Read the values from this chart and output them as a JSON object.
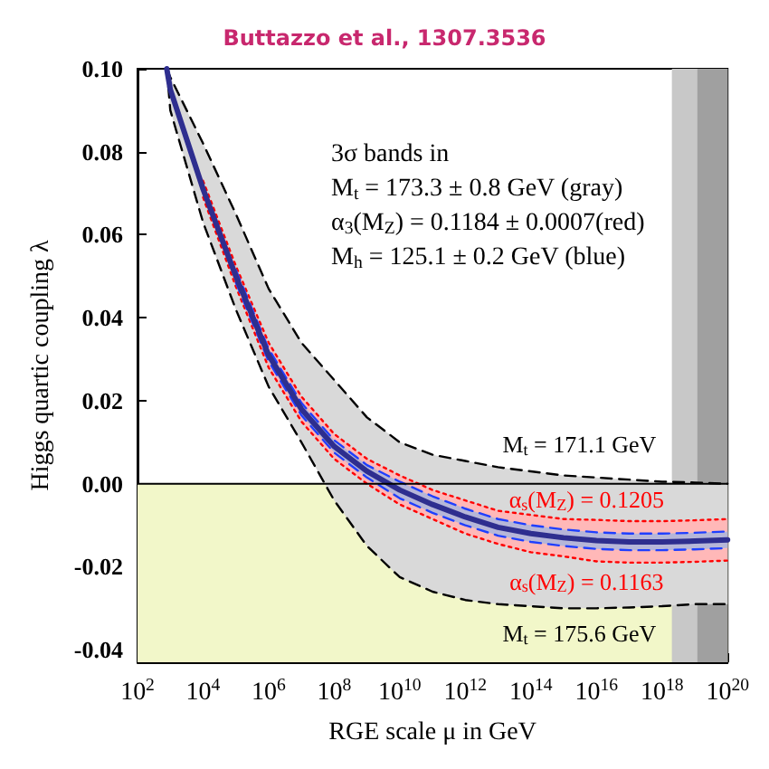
{
  "chart_data": {
    "type": "line",
    "title": "Buttazzo et al., 1307.3536",
    "xlabel": "RGE scale μ in GeV",
    "ylabel": "Higgs quartic coupling λ",
    "log": "x",
    "grid": false,
    "marker": "none",
    "xlim": [
      100,
      1e+20
    ],
    "ylim": [
      -0.043,
      0.1
    ],
    "xticks": [
      {
        "value": 100,
        "label": "10$^{2}$"
      },
      {
        "value": 1000,
        "label": null
      },
      {
        "value": 10000,
        "label": "10$^{4}$"
      },
      {
        "value": 100000,
        "label": null
      },
      {
        "value": 1000000,
        "label": "10$^{6}$"
      },
      {
        "value": 10000000,
        "label": null
      },
      {
        "value": 100000000,
        "label": "10$^{8}$"
      },
      {
        "value": 1000000000,
        "label": null
      },
      {
        "value": 10000000000,
        "label": "10$^{10}$"
      },
      {
        "value": 100000000000,
        "label": null
      },
      {
        "value": 1000000000000,
        "label": "10$^{12}$"
      },
      {
        "value": 10000000000000,
        "label": null
      },
      {
        "value": 100000000000000,
        "label": "10$^{14}$"
      },
      {
        "value": 1000000000000000,
        "label": null
      },
      {
        "value": 1e+16,
        "label": "10$^{16}$"
      },
      {
        "value": 1e+17,
        "label": null
      },
      {
        "value": 1e+18,
        "label": "10$^{18}$"
      },
      {
        "value": 1e+19,
        "label": null
      },
      {
        "value": 1e+20,
        "label": "10$^{20}$"
      }
    ],
    "yticks": [
      {
        "value": -0.04,
        "label": "-0.04"
      },
      {
        "value": -0.02,
        "label": "-0.02"
      },
      {
        "value": 0,
        "label": "0.00"
      },
      {
        "value": 0.02,
        "label": "0.02"
      },
      {
        "value": 0.04,
        "label": "0.04"
      },
      {
        "value": 0.06,
        "label": "0.06"
      },
      {
        "value": 0.08,
        "label": "0.08"
      },
      {
        "value": 0.1,
        "label": "0.10"
      }
    ],
    "x": [
      780,
      1000,
      10000,
      100000,
      1000000,
      10000000,
      100000000,
      1000000000,
      10000000000,
      100000000000,
      1000000000000,
      10000000000000,
      100000000000000,
      1000000000000000,
      1e+16,
      1e+17,
      1e+18,
      1e+19,
      1e+20
    ],
    "series": [
      {
        "color": "#000000",
        "line_style": "dashed",
        "values": [
          0.1,
          0.098,
          0.082,
          0.065,
          0.047,
          0.034,
          0.025,
          0.016,
          0.01,
          0.007,
          0.0055,
          0.004,
          0.003,
          0.002,
          0.0015,
          0.001,
          0.0005,
          0.0003,
          0
        ],
        "lower": [
          0.1,
          0.09,
          0.063,
          0.042,
          0.0234,
          0.01,
          -0.004,
          -0.015,
          -0.0225,
          -0.026,
          -0.028,
          -0.029,
          -0.0295,
          -0.03,
          -0.03,
          -0.0298,
          -0.0295,
          -0.029,
          -0.029
        ],
        "upper": [
          0.1,
          0.098,
          0.082,
          0.065,
          0.047,
          0.034,
          0.025,
          0.016,
          0.01,
          0.007,
          0.0055,
          0.004,
          0.003,
          0.002,
          0.0015,
          0.001,
          0.0005,
          0.0003,
          0
        ]
      },
      {
        "color": "#000000",
        "line_style": "dashed",
        "values": [
          0.1,
          0.09,
          0.063,
          0.042,
          0.0234,
          0.01,
          -0.004,
          -0.015,
          -0.0225,
          -0.026,
          -0.028,
          -0.029,
          -0.0295,
          -0.03,
          -0.03,
          -0.0298,
          -0.0295,
          -0.029,
          -0.029
        ]
      },
      {
        "color": "#ff0000",
        "line_style": "dotted",
        "values": [
          null,
          null,
          0.073,
          0.0525,
          0.034,
          0.021,
          0.012,
          0.006,
          0.002,
          -0.0015,
          -0.004,
          -0.0065,
          -0.0075,
          -0.0085,
          -0.0087,
          -0.009,
          -0.009,
          -0.0088,
          -0.0085
        ],
        "lower": [
          0.1,
          0.094,
          0.069,
          0.0475,
          0.028,
          0.015,
          0.006,
          0,
          -0.005,
          -0.0085,
          -0.012,
          -0.0145,
          -0.0165,
          -0.0175,
          -0.0187,
          -0.019,
          -0.019,
          -0.0188,
          -0.0185
        ],
        "upper": [
          0.1,
          0.096,
          0.073,
          0.0525,
          0.034,
          0.021,
          0.012,
          0.006,
          0.002,
          -0.0015,
          -0.004,
          -0.0065,
          -0.0075,
          -0.0085,
          -0.0087,
          -0.009,
          -0.009,
          -0.0088,
          -0.0085
        ]
      },
      {
        "color": "#ff0000",
        "line_style": "dotted",
        "values": [
          null,
          null,
          0.069,
          0.0475,
          0.028,
          0.015,
          0.006,
          0,
          -0.005,
          -0.0085,
          -0.012,
          -0.0145,
          -0.0165,
          -0.0175,
          -0.0187,
          -0.019,
          -0.019,
          -0.0188,
          -0.0185
        ]
      },
      {
        "color": "#1f3fff",
        "line_style": "dashed",
        "values": [
          null,
          null,
          null,
          0.0515,
          0.0325,
          0.0195,
          0.0105,
          0.0045,
          0.0005,
          -0.003,
          -0.006,
          -0.0085,
          -0.01,
          -0.011,
          -0.0117,
          -0.012,
          -0.012,
          -0.0118,
          -0.0115
        ]
      },
      {
        "color": "#1f3fff",
        "line_style": "dashed",
        "values": [
          null,
          null,
          null,
          0.0485,
          0.0295,
          0.0165,
          0.0075,
          0.0015,
          -0.0035,
          -0.007,
          -0.01,
          -0.0125,
          -0.014,
          -0.015,
          -0.0157,
          -0.016,
          -0.016,
          -0.0158,
          -0.0155
        ]
      },
      {
        "color": "#2e2e8f",
        "line_style": "solid",
        "values": [
          0.1,
          0.095,
          0.071,
          0.05,
          0.031,
          0.018,
          0.009,
          0.003,
          -0.0015,
          -0.005,
          -0.008,
          -0.0105,
          -0.012,
          -0.013,
          -0.0137,
          -0.014,
          -0.014,
          -0.0138,
          -0.0135
        ],
        "lower": [
          0.1,
          0.0945,
          0.07,
          0.0485,
          0.0295,
          0.0165,
          0.0075,
          0.0015,
          -0.0035,
          -0.007,
          -0.01,
          -0.0125,
          -0.014,
          -0.015,
          -0.0157,
          -0.016,
          -0.016,
          -0.0158,
          -0.0155
        ],
        "upper": [
          0.1,
          0.0955,
          0.072,
          0.0515,
          0.0325,
          0.0195,
          0.0105,
          0.0045,
          0.0005,
          -0.003,
          -0.006,
          -0.0085,
          -0.01,
          -0.011,
          -0.0117,
          -0.012,
          -0.012,
          -0.0118,
          -0.0115
        ]
      }
    ],
    "bands": [
      {
        "axis": "y",
        "from": -0.043,
        "to": 0,
        "color": "#f2f7c9"
      },
      {
        "axis": "x",
        "from": 2e+18,
        "to": 1e+20,
        "color": "#c8c8c8"
      },
      {
        "axis": "x",
        "from": 1.2e+19,
        "to": 1e+20,
        "color": "#a0a0a0"
      }
    ],
    "ref_lines": [
      {
        "axis": "y",
        "value": 0,
        "color": "#000000"
      }
    ],
    "annotations": [
      "3σ bands in",
      "M$_{t}$ = 173.3 ± 0.8 GeV (gray)",
      "α$_{3}$(M$_{Z}$) = 0.1184 ± 0.0007(red)",
      "M$_{h}$ = 125.1 ± 0.2 GeV (blue)",
      "M$_{t}$ = 171.1 GeV",
      "α$_{s}$(M$_{Z}$) = 0.1205",
      "α$_{s}$(M$_{Z}$) = 0.1163",
      "M$_{t}$ = 175.6 GeV"
    ]
  }
}
